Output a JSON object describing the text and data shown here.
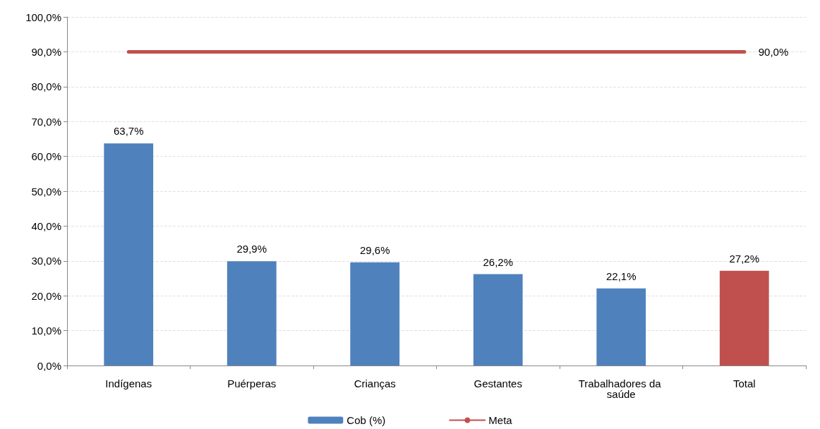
{
  "chart_data": {
    "type": "bar",
    "categories": [
      "Indígenas",
      "Puérperas",
      "Crianças",
      "Gestantes",
      "Trabalhadores da saúde",
      "Total"
    ],
    "series": [
      {
        "name": "Cob (%)",
        "color": "#4f81bd",
        "colors": [
          "#4f81bd",
          "#4f81bd",
          "#4f81bd",
          "#4f81bd",
          "#4f81bd",
          "#c0504d"
        ],
        "values": [
          63.7,
          29.9,
          29.6,
          26.2,
          22.1,
          27.2
        ],
        "value_labels": [
          "63,7%",
          "29,9%",
          "29,6%",
          "26,2%",
          "22,1%",
          "27,2%"
        ]
      },
      {
        "name": "Meta",
        "type": "line",
        "color": "#c0504d",
        "marker": "none",
        "line_style": "solid",
        "values": [
          90,
          90,
          90,
          90,
          90,
          90
        ],
        "value_labels": [
          null,
          null,
          null,
          null,
          null,
          "90,0%"
        ]
      }
    ],
    "ylim": [
      0,
      100
    ],
    "yticks": [
      {
        "value": 0,
        "label": "0,0%"
      },
      {
        "value": 10,
        "label": "10,0%"
      },
      {
        "value": 20,
        "label": "20,0%"
      },
      {
        "value": 30,
        "label": "30,0%"
      },
      {
        "value": 40,
        "label": "40,0%"
      },
      {
        "value": 50,
        "label": "50,0%"
      },
      {
        "value": 60,
        "label": "60,0%"
      },
      {
        "value": 70,
        "label": "70,0%"
      },
      {
        "value": 80,
        "label": "80,0%"
      },
      {
        "value": 90,
        "label": "90,0%"
      },
      {
        "value": 100,
        "label": "100,0%"
      }
    ],
    "grid": "y",
    "legend": "bottom"
  }
}
